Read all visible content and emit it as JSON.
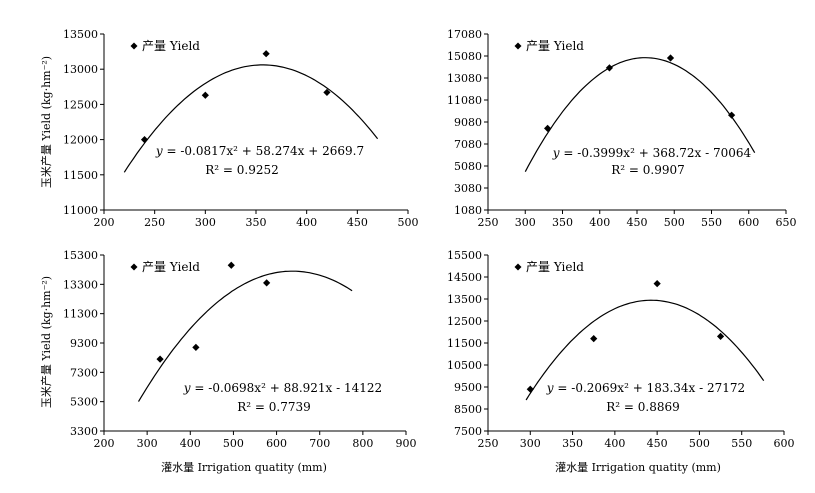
{
  "ylabel_shared": "玉米产量 Yield (kg·hm⁻²)",
  "xlabel_shared": "灌水量 Irrigation quatity (mm)",
  "chart_data": [
    {
      "type": "scatter",
      "legend": "产量 Yield",
      "legend_position": "top-left",
      "xlim": [
        200,
        500
      ],
      "xticks": [
        200,
        250,
        300,
        350,
        400,
        450,
        500
      ],
      "ylim": [
        11000,
        13500
      ],
      "yticks": [
        11000,
        11500,
        12000,
        12500,
        13000,
        13500
      ],
      "points": [
        [
          240,
          12000
        ],
        [
          300,
          12630
        ],
        [
          360,
          13220
        ],
        [
          420,
          12670
        ]
      ],
      "fit": {
        "a": -0.0817,
        "b": 58.274,
        "c": 2669.7,
        "x_range": [
          220,
          470
        ]
      },
      "equation_lhs": "y",
      "equation_rhs": " = -0.0817x² + 58.274x + 2669.7",
      "r2_label": "R² = 0.9252"
    },
    {
      "type": "scatter",
      "legend": "产量 Yield",
      "legend_position": "top-left",
      "xlim": [
        250,
        650
      ],
      "xticks": [
        250,
        300,
        350,
        400,
        450,
        500,
        550,
        600,
        650
      ],
      "ylim": [
        1080,
        17080
      ],
      "yticks": [
        1080,
        3080,
        5080,
        7080,
        9080,
        11080,
        13080,
        15080,
        17080
      ],
      "points": [
        [
          330,
          8500
        ],
        [
          413,
          14000
        ],
        [
          495,
          14900
        ],
        [
          577,
          9700
        ]
      ],
      "fit": {
        "a": -0.3999,
        "b": 368.72,
        "c": -70064,
        "x_range": [
          300,
          608
        ]
      },
      "equation_lhs": "y",
      "equation_rhs": " = -0.3999x² + 368.72x - 70064",
      "r2_label": "R² = 0.9907"
    },
    {
      "type": "scatter",
      "legend": "产量 Yield",
      "legend_position": "top-left",
      "xlim": [
        200,
        900
      ],
      "xticks": [
        200,
        300,
        400,
        500,
        600,
        700,
        800,
        900
      ],
      "ylim": [
        3300,
        15300
      ],
      "yticks": [
        3300,
        5300,
        7300,
        9300,
        11300,
        13300,
        15300
      ],
      "points": [
        [
          330,
          8200
        ],
        [
          413,
          9000
        ],
        [
          495,
          14600
        ],
        [
          577,
          13400
        ]
      ],
      "fit": {
        "a": -0.0698,
        "b": 88.921,
        "c": -14122,
        "x_range": [
          280,
          775
        ]
      },
      "equation_lhs": "y",
      "equation_rhs": " = -0.0698x² + 88.921x - 14122",
      "r2_label": "R² = 0.7739"
    },
    {
      "type": "scatter",
      "legend": "产量 Yield",
      "legend_position": "top-left",
      "xlim": [
        250,
        600
      ],
      "xticks": [
        250,
        300,
        350,
        400,
        450,
        500,
        550,
        600
      ],
      "ylim": [
        7500,
        15500
      ],
      "yticks": [
        7500,
        8500,
        9500,
        10500,
        11500,
        12500,
        13500,
        14500,
        15500
      ],
      "points": [
        [
          300,
          9400
        ],
        [
          375,
          11700
        ],
        [
          450,
          14200
        ],
        [
          525,
          11800
        ]
      ],
      "fit": {
        "a": -0.2069,
        "b": 183.34,
        "c": -27172,
        "x_range": [
          295,
          576
        ]
      },
      "equation_lhs": "y",
      "equation_rhs": " = -0.2069x² + 183.34x - 27172",
      "r2_label": "R² = 0.8869"
    }
  ]
}
